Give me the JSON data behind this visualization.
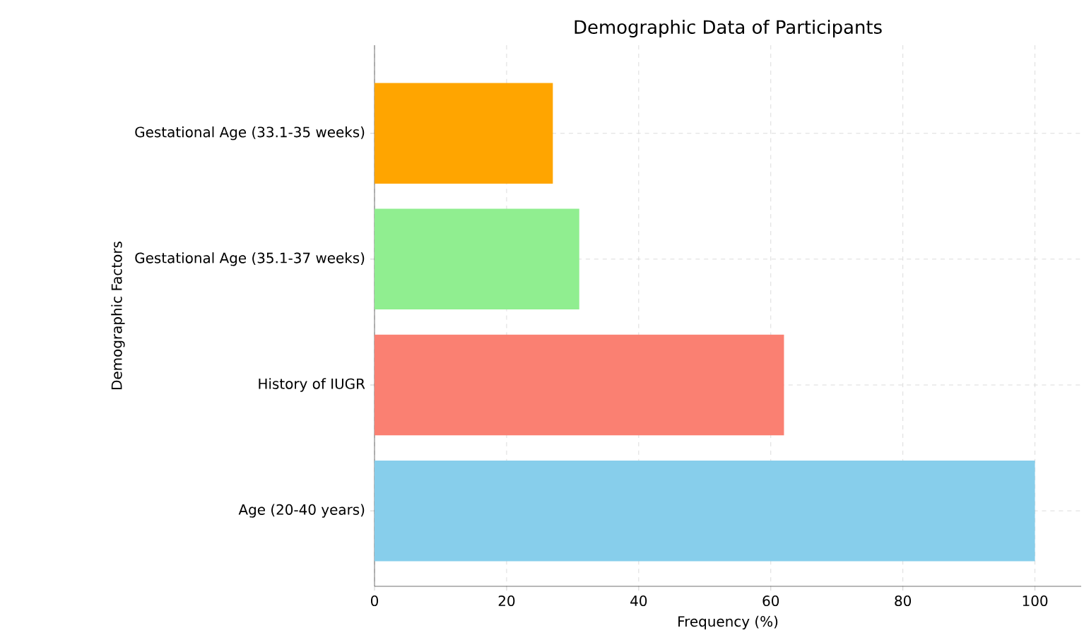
{
  "chart_data": {
    "type": "bar",
    "orientation": "horizontal",
    "title": "Demographic Data of Participants",
    "xlabel": "Frequency (%)",
    "ylabel": "Demographic Factors",
    "categories": [
      "Gestational Age (33.1-35 weeks)",
      "Gestational Age (35.1-37 weeks)",
      "History of IUGR",
      "Age (20-40 years)"
    ],
    "values": [
      27,
      31,
      62,
      100
    ],
    "colors": [
      "#ffa500",
      "#90ee90",
      "#fa8072",
      "#87ceeb"
    ],
    "xlim": [
      0,
      107
    ],
    "xticks": [
      0,
      20,
      40,
      60,
      80,
      100
    ],
    "grid": true
  }
}
